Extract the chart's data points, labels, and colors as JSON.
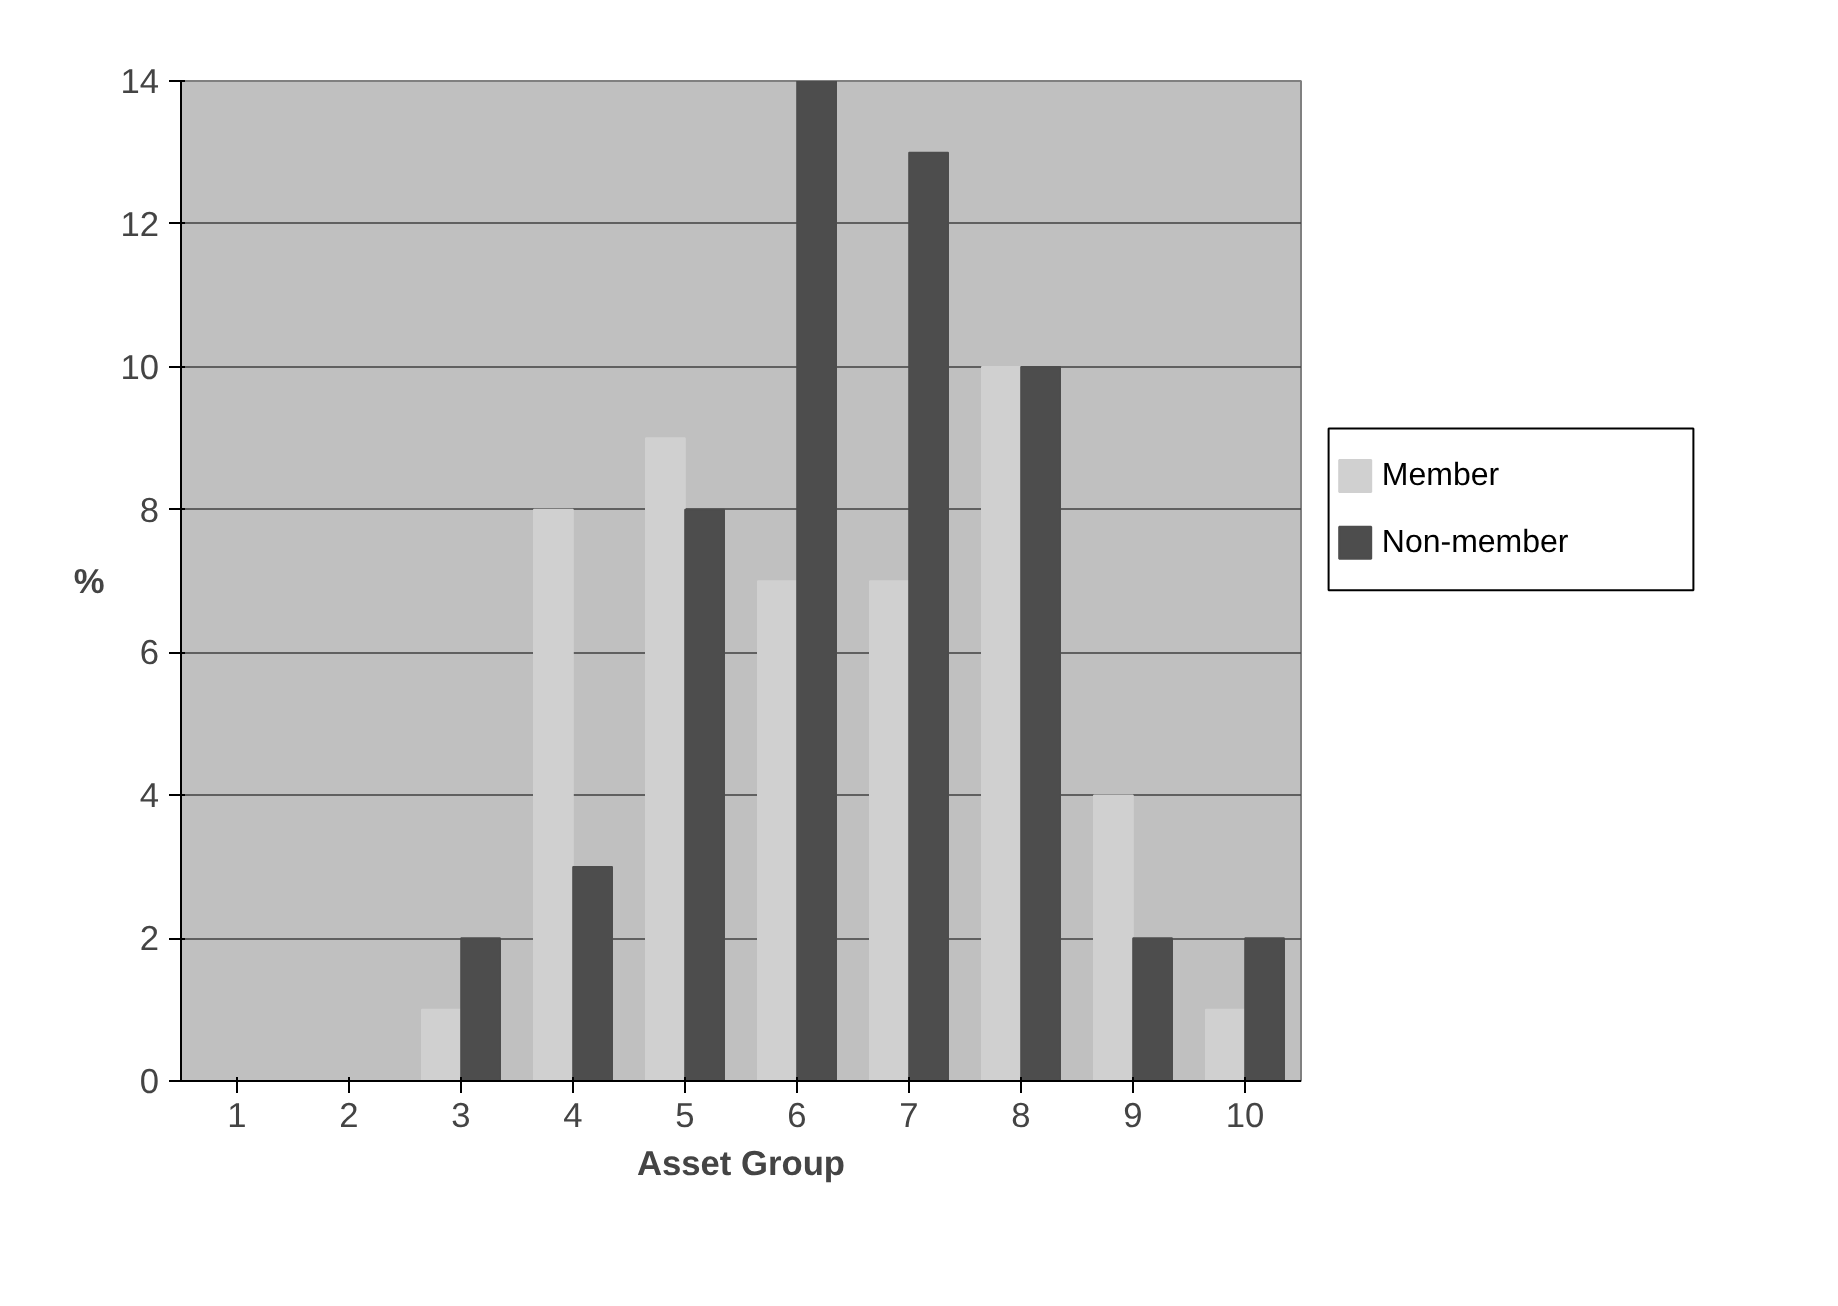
{
  "chart_data": {
    "type": "bar",
    "xlabel": "Asset Group",
    "ylabel": "%",
    "categories": [
      "1",
      "2",
      "3",
      "4",
      "5",
      "6",
      "7",
      "8",
      "9",
      "10"
    ],
    "series": [
      {
        "name": "Member",
        "color": "#d0d0d0",
        "values": [
          0,
          0,
          1,
          8,
          9,
          7,
          7,
          10,
          4,
          1
        ]
      },
      {
        "name": "Non-member",
        "color": "#4d4d4d",
        "values": [
          0,
          0,
          2,
          3,
          8,
          14,
          13,
          10,
          2,
          2
        ]
      }
    ],
    "ylim": [
      0,
      14
    ],
    "yticks": [
      0,
      2,
      4,
      6,
      8,
      10,
      12,
      14
    ],
    "grid": "y",
    "legend": "right"
  }
}
